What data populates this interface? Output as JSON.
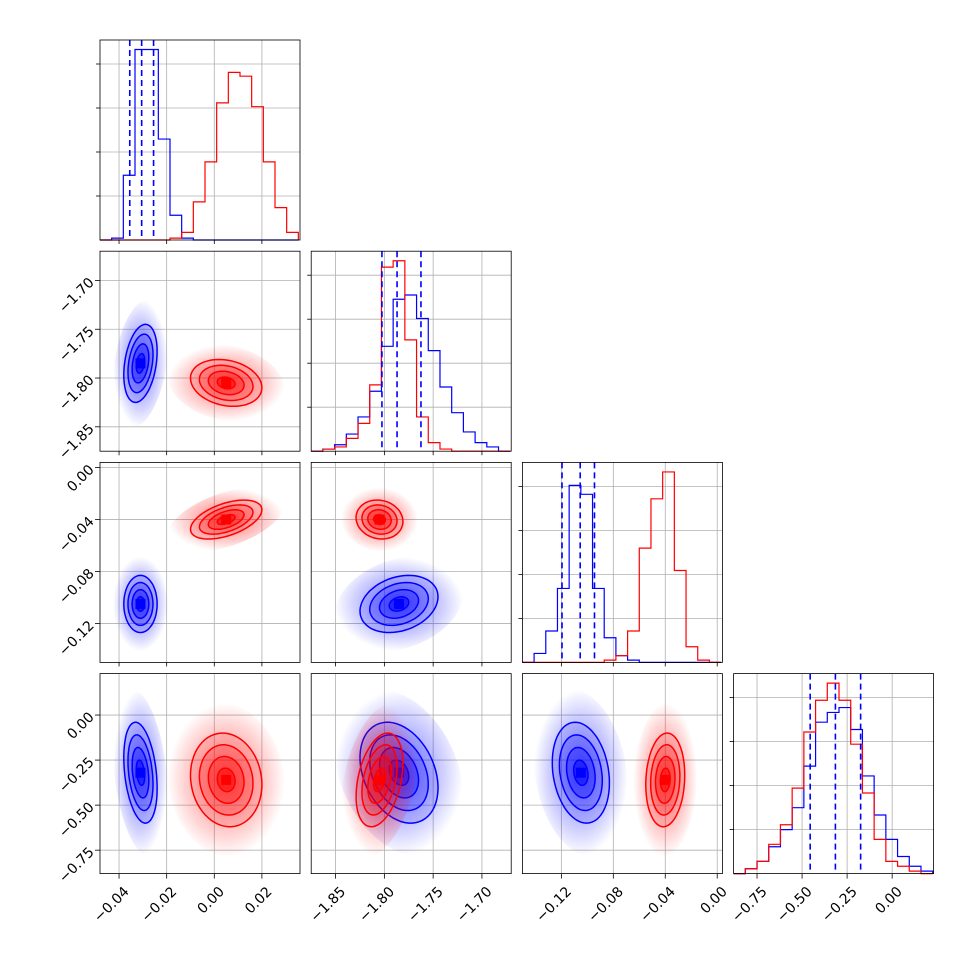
{
  "chart_data": {
    "type": "corner",
    "title": "",
    "colors": {
      "blue": "#0000ff",
      "red": "#ff0000"
    },
    "grid": true,
    "params": [
      {
        "ticks": [
          -0.04,
          -0.02,
          0.0,
          0.02
        ],
        "tick_labels": [
          "−0.04",
          "−0.02",
          "0.00",
          "0.02"
        ],
        "range": [
          -0.048,
          0.036
        ]
      },
      {
        "ticks": [
          -1.85,
          -1.8,
          -1.75,
          -1.7
        ],
        "tick_labels": [
          "−1.85",
          "−1.80",
          "−1.75",
          "−1.70"
        ],
        "range": [
          -1.875,
          -1.67
        ]
      },
      {
        "ticks": [
          -0.12,
          -0.08,
          -0.04,
          0.0
        ],
        "tick_labels": [
          "−0.12",
          "−0.08",
          "−0.04",
          "0.00"
        ],
        "range": [
          -0.15,
          0.004
        ]
      },
      {
        "ticks": [
          -0.75,
          -0.5,
          -0.25,
          0.0
        ],
        "tick_labels": [
          "−0.75",
          "−0.50",
          "−0.25",
          "0.00"
        ],
        "range": [
          -0.88,
          0.23
        ]
      }
    ],
    "series": [
      {
        "color": "blue",
        "mean": [
          -0.031,
          -1.785,
          -0.105,
          -0.32
        ],
        "sd": [
          0.0035,
          0.02,
          0.011,
          0.14
        ],
        "quantiles": [
          [
            -0.0355,
            -0.0305,
            -0.0255
          ],
          [
            -1.8025,
            -1.787,
            -1.7625
          ],
          [
            -0.1195,
            -0.1055,
            -0.0945
          ],
          [
            -0.455,
            -0.315,
            -0.175
          ]
        ],
        "correlations": {
          "0-1": 0.3,
          "0-2": 0.0,
          "0-3": -0.3,
          "1-2": 0.25,
          "1-3": -0.3,
          "2-3": -0.2
        }
      },
      {
        "color": "red",
        "mean": [
          0.005,
          -1.805,
          -0.04,
          -0.36
        ],
        "sd": [
          0.0075,
          0.012,
          0.0075,
          0.13
        ],
        "quantiles": null,
        "correlations": {
          "0-1": -0.2,
          "0-2": 0.5,
          "0-3": -0.1,
          "1-2": -0.1,
          "1-3": 0.35,
          "2-3": 0.1
        }
      }
    ],
    "histograms": [
      {
        "param": 0,
        "bin_edges": [
          -0.048,
          -0.0431,
          -0.0382,
          -0.0333,
          -0.0284,
          -0.0235,
          -0.0186,
          -0.0137,
          -0.0088,
          -0.0039,
          0.001,
          0.0059,
          0.0108,
          0.0157,
          0.0206,
          0.0255,
          0.0304,
          0.0353
        ],
        "blue": [
          0,
          1,
          34,
          100,
          100,
          53,
          13,
          1,
          0,
          0,
          0,
          0,
          0,
          0,
          0,
          0,
          0
        ],
        "red": [
          0,
          0,
          0,
          0,
          0,
          0,
          1,
          4,
          20,
          41,
          72,
          88,
          86,
          70,
          41,
          17,
          4
        ]
      },
      {
        "param": 1,
        "bin_edges": [
          -1.875,
          -1.863,
          -1.851,
          -1.839,
          -1.827,
          -1.815,
          -1.803,
          -1.791,
          -1.779,
          -1.767,
          -1.755,
          -1.743,
          -1.731,
          -1.719,
          -1.707,
          -1.695,
          -1.683,
          -1.671
        ],
        "blue": [
          0,
          1,
          3,
          8,
          16,
          28,
          49,
          71,
          73,
          62,
          47,
          30,
          18,
          9,
          4,
          2,
          0
        ],
        "red": [
          0,
          1,
          2,
          6,
          13,
          31,
          86,
          89,
          52,
          16,
          4,
          1,
          0,
          0,
          0,
          0,
          0
        ]
      },
      {
        "param": 2,
        "bin_edges": [
          -0.15,
          -0.141,
          -0.132,
          -0.123,
          -0.114,
          -0.105,
          -0.096,
          -0.087,
          -0.078,
          -0.069,
          -0.06,
          -0.051,
          -0.042,
          -0.033,
          -0.024,
          -0.015,
          -0.006,
          0.003
        ],
        "blue": [
          0,
          4,
          14,
          33,
          79,
          75,
          33,
          11,
          3,
          1,
          0,
          0,
          0,
          0,
          0,
          0,
          0
        ],
        "red": [
          0,
          0,
          0,
          0,
          0,
          0,
          0,
          1,
          3,
          14,
          51,
          73,
          85,
          41,
          7,
          1,
          0
        ]
      },
      {
        "param": 3,
        "bin_edges": [
          -0.88,
          -0.815,
          -0.75,
          -0.685,
          -0.62,
          -0.555,
          -0.49,
          -0.425,
          -0.36,
          -0.295,
          -0.23,
          -0.165,
          -0.1,
          -0.035,
          0.03,
          0.095,
          0.16,
          0.225
        ],
        "blue": [
          0,
          2,
          5,
          11,
          18,
          27,
          44,
          62,
          66,
          68,
          59,
          40,
          24,
          14,
          7,
          3,
          1
        ],
        "red": [
          0,
          2,
          5,
          12,
          20,
          35,
          58,
          71,
          78,
          71,
          53,
          33,
          14,
          5,
          3,
          1,
          0
        ]
      }
    ]
  }
}
